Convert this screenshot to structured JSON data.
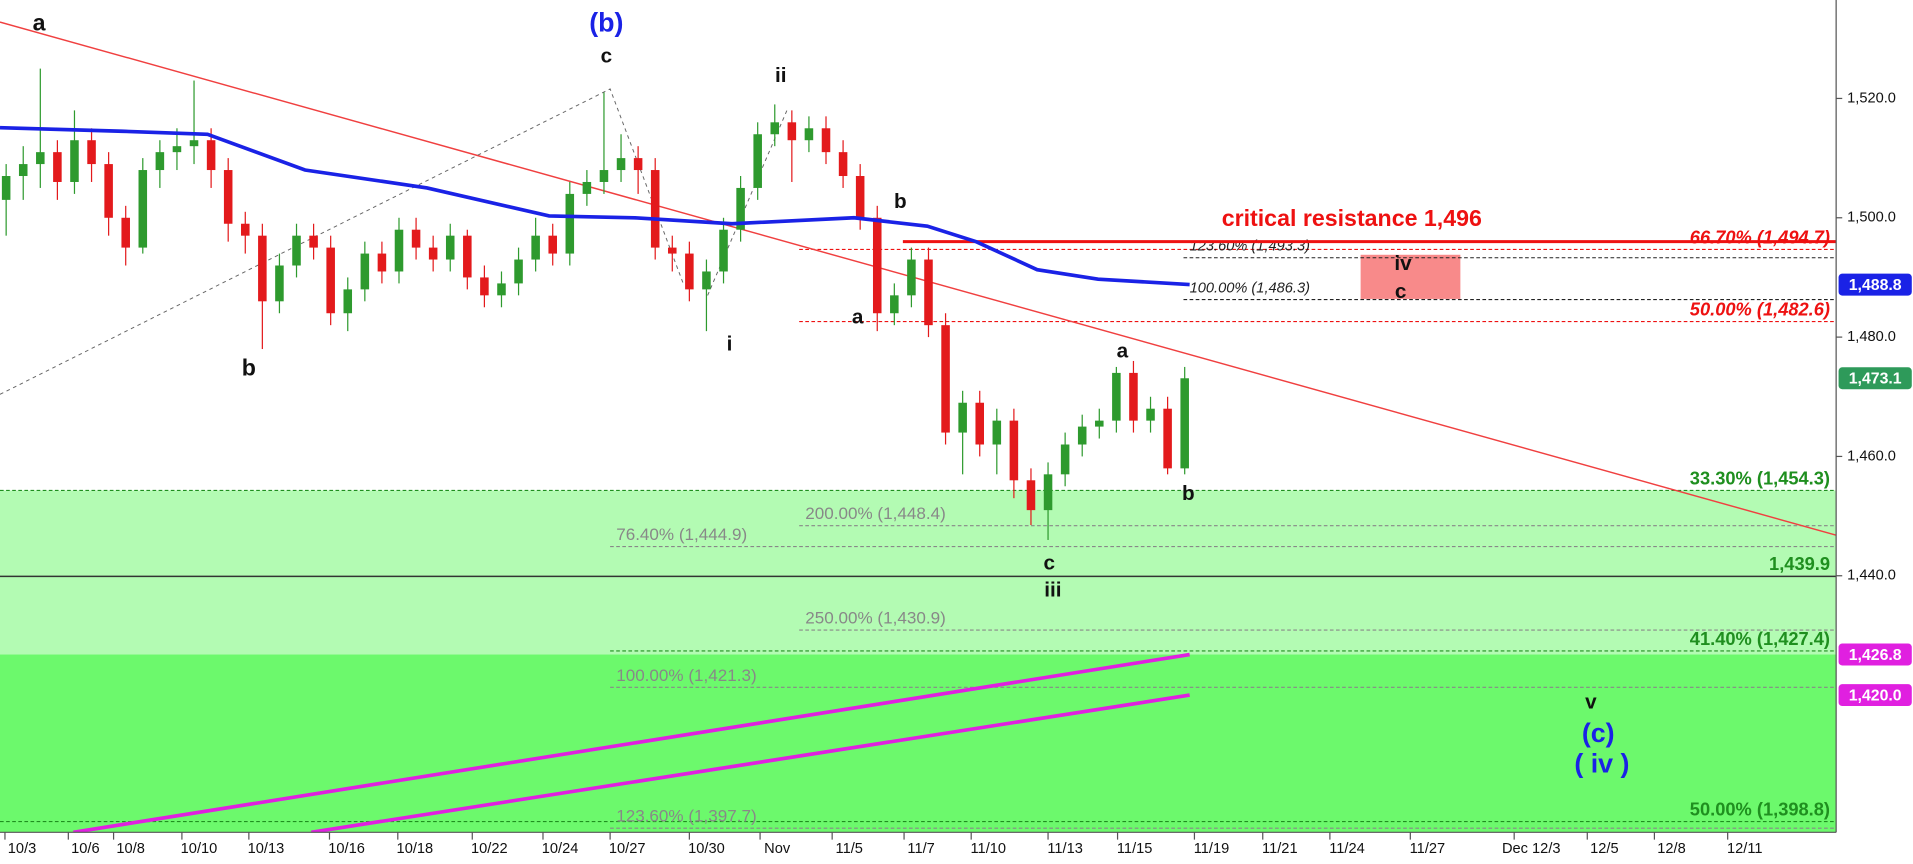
{
  "chart_data": {
    "type": "candlestick",
    "x": [
      0,
      1,
      2,
      3,
      4,
      5,
      6,
      7,
      8,
      9,
      10,
      11,
      12,
      13,
      14,
      15,
      16,
      17,
      18,
      19,
      20,
      21,
      22,
      23,
      24,
      25,
      26,
      27,
      28,
      29,
      30,
      31,
      32,
      33,
      34,
      35,
      36,
      37,
      38,
      39,
      40,
      41,
      42,
      43,
      44,
      45,
      46,
      47,
      48,
      49,
      50,
      51,
      52,
      53,
      54,
      55,
      56,
      57,
      58,
      59,
      60,
      61,
      62,
      63,
      64,
      65,
      66,
      67,
      68,
      69
    ],
    "open": [
      1503,
      1507,
      1509,
      1511,
      1506,
      1513,
      1509,
      1500,
      1495,
      1508,
      1511,
      1512,
      1513,
      1508,
      1499,
      1497,
      1486,
      1492,
      1497,
      1495,
      1484,
      1488,
      1494,
      1491,
      1498,
      1495,
      1493,
      1497,
      1490,
      1487,
      1489,
      1493,
      1497,
      1494,
      1504,
      1506,
      1508,
      1510,
      1508,
      1495,
      1494,
      1488,
      1491,
      1498,
      1505,
      1514,
      1516,
      1513,
      1515,
      1511,
      1507,
      1500,
      1484,
      1487,
      1493,
      1482,
      1464,
      1469,
      1462,
      1466,
      1456,
      1451,
      1457,
      1462,
      1465,
      1466,
      1474,
      1466,
      1468,
      1458
    ],
    "high": [
      1509,
      1512,
      1525,
      1513,
      1518,
      1515,
      1511,
      1502,
      1510,
      1513,
      1515,
      1523,
      1515,
      1510,
      1501,
      1499,
      1494,
      1499,
      1499,
      1497,
      1490,
      1496,
      1496,
      1500,
      1500,
      1497,
      1499,
      1498,
      1492,
      1491,
      1495,
      1500,
      1499,
      1506,
      1508,
      1521,
      1514,
      1512,
      1510,
      1497,
      1496,
      1493,
      1500,
      1507,
      1516,
      1519,
      1518,
      1517,
      1517,
      1513,
      1509,
      1502,
      1489,
      1495,
      1495,
      1484,
      1471,
      1471,
      1468,
      1468,
      1458,
      1459,
      1464,
      1467,
      1468,
      1475,
      1476,
      1470,
      1470,
      1475
    ],
    "low": [
      1497,
      1503,
      1505,
      1503,
      1504,
      1506,
      1497,
      1492,
      1494,
      1505,
      1508,
      1509,
      1505,
      1496,
      1494,
      1478,
      1484,
      1490,
      1493,
      1482,
      1481,
      1486,
      1489,
      1489,
      1493,
      1491,
      1491,
      1488,
      1485,
      1485,
      1487,
      1491,
      1492,
      1492,
      1502,
      1504,
      1506,
      1504,
      1493,
      1491,
      1486,
      1481,
      1489,
      1496,
      1503,
      1512,
      1506,
      1511,
      1509,
      1505,
      1498,
      1481,
      1482,
      1485,
      1480,
      1462,
      1457,
      1460,
      1457,
      1453,
      1448.5,
      1446,
      1455,
      1460,
      1463,
      1464,
      1464,
      1464,
      1457,
      1457
    ],
    "close": [
      1507,
      1509,
      1511,
      1506,
      1513,
      1509,
      1500,
      1495,
      1508,
      1511,
      1512,
      1513,
      1508,
      1499,
      1497,
      1486,
      1492,
      1497,
      1495,
      1484,
      1488,
      1494,
      1491,
      1498,
      1495,
      1493,
      1497,
      1490,
      1487,
      1489,
      1493,
      1497,
      1494,
      1504,
      1506,
      1508,
      1510,
      1508,
      1495,
      1494,
      1488,
      1491,
      1498,
      1505,
      1514,
      1516,
      1513,
      1515,
      1511,
      1507,
      1500,
      1484,
      1487,
      1493,
      1482,
      1464,
      1469,
      1462,
      1466,
      1456,
      1451,
      1457,
      1462,
      1465,
      1466,
      1474,
      1466,
      1468,
      1458,
      1473.1
    ],
    "up_color": "#2e9a2e",
    "down_color": "#e31a1c",
    "xlim": [
      -0.36,
      107.14
    ],
    "xticks": [
      {
        "value": 0.93,
        "label": "10/3"
      },
      {
        "value": 4.64,
        "label": "10/6"
      },
      {
        "value": 7.29,
        "label": "10/8"
      },
      {
        "value": 11.29,
        "label": "10/10"
      },
      {
        "value": 15.21,
        "label": "10/13"
      },
      {
        "value": 19.93,
        "label": "10/16"
      },
      {
        "value": 23.93,
        "label": "10/18"
      },
      {
        "value": 28.29,
        "label": "10/22"
      },
      {
        "value": 32.43,
        "label": "10/24"
      },
      {
        "value": 36.36,
        "label": "10/27"
      },
      {
        "value": 41,
        "label": "10/30"
      },
      {
        "value": 45.14,
        "label": "Nov"
      },
      {
        "value": 49.36,
        "label": "11/5"
      },
      {
        "value": 53.57,
        "label": "11/7"
      },
      {
        "value": 57.5,
        "label": "11/10"
      },
      {
        "value": 62,
        "label": "11/13"
      },
      {
        "value": 66.07,
        "label": "11/15"
      },
      {
        "value": 70.57,
        "label": "11/19"
      },
      {
        "value": 74.57,
        "label": "11/21"
      },
      {
        "value": 78.5,
        "label": "11/24"
      },
      {
        "value": 83.21,
        "label": "11/27"
      },
      {
        "value": 89.29,
        "label": "Dec 12/3"
      },
      {
        "value": 93.57,
        "label": "12/5"
      },
      {
        "value": 97.5,
        "label": "12/8"
      },
      {
        "value": 101.79,
        "label": "12/11"
      }
    ],
    "ylim": [
      1397,
      1536.5
    ],
    "yticks": [
      {
        "value": 1440,
        "label": "1,440.0"
      },
      {
        "value": 1460,
        "label": "1,460.0"
      },
      {
        "value": 1480,
        "label": "1,480.0"
      },
      {
        "value": 1500,
        "label": "1,500.0"
      },
      {
        "value": 1520,
        "label": "1,520.0"
      }
    ],
    "zones": [
      {
        "top": 1454.3,
        "bottom": 1426.8,
        "color": "#b3fbb3"
      },
      {
        "top": 1426.8,
        "bottom": 1397,
        "color": "#6cf96c"
      }
    ],
    "box": {
      "x": [
        79.3,
        85.14
      ],
      "y": [
        1486.4,
        1493.8
      ],
      "color": "#f88a8a"
    },
    "lines": [
      {
        "x": [
          -0.36,
          6.79,
          11.79,
          17.5,
          24.64,
          31.79,
          36.79,
          42.5,
          49.64,
          53.93,
          56.79,
          60.36,
          63.93,
          69.29
        ],
        "values": [
          1515.1,
          1514.5,
          1514,
          1508,
          1505,
          1500.3,
          1500,
          1499,
          1500,
          1498.6,
          1496,
          1491.3,
          1489.7,
          1488.8
        ],
        "color": "#1a22e6",
        "width": 3,
        "dash": false
      },
      {
        "x": [
          -0.36,
          107.14
        ],
        "values": [
          1532.8,
          1446.8
        ],
        "color": "#f04040",
        "width": 1.2,
        "dash": false
      },
      {
        "x": [
          -0.36,
          35.36,
          39.64
        ],
        "values": [
          1470.4,
          1521.6,
          1489
        ],
        "color": "#666666",
        "width": 0.8,
        "dash": true
      },
      {
        "x": [
          41.07,
          45.71
        ],
        "values": [
          1487,
          1518
        ],
        "color": "#666666",
        "width": 0.8,
        "dash": true
      },
      {
        "x": [
          3.93,
          69.29
        ],
        "values": [
          1397,
          1426.8
        ],
        "color": "#e020e0",
        "width": 3,
        "dash": false
      },
      {
        "x": [
          17.86,
          69.29
        ],
        "values": [
          1397,
          1420.0
        ],
        "color": "#e020e0",
        "width": 3,
        "dash": false
      }
    ],
    "resistance": {
      "label": "critical resistance 1,496",
      "value": 1496,
      "from": 52.5,
      "color": "#ee1111"
    },
    "levels": [
      {
        "label": "66.70% (1,494.7)",
        "value": 1494.7,
        "from": 46.43,
        "color": "#ee1111",
        "dash": true,
        "label_side": "right"
      },
      {
        "label": "123.60% (1,493.3)",
        "value": 1493.3,
        "from": 68.93,
        "color": "#222222",
        "dash": true,
        "label_side": "left"
      },
      {
        "label": "100.00% (1,486.3)",
        "value": 1486.3,
        "from": 68.93,
        "color": "#222222",
        "dash": true,
        "label_side": "left"
      },
      {
        "label": "50.00% (1,482.6)",
        "value": 1482.6,
        "from": 46.43,
        "color": "#ee1111",
        "dash": true,
        "label_side": "right"
      },
      {
        "label": "33.30% (1,454.3)",
        "value": 1454.3,
        "from": -0.36,
        "color": "#1f8f1f",
        "dash": true,
        "label_side": "right"
      },
      {
        "label": "200.00% (1,448.4)",
        "value": 1448.4,
        "from": 46.43,
        "color": "#888888",
        "dash": true,
        "label_side": "left"
      },
      {
        "label": "76.40% (1,444.9)",
        "value": 1444.9,
        "from": 35.36,
        "color": "#888888",
        "dash": true,
        "label_side": "left"
      },
      {
        "label": "1,439.9",
        "value": 1439.9,
        "from": -0.36,
        "color": "#1f8f1f",
        "dash": false,
        "label_side": "right"
      },
      {
        "label": "250.00% (1,430.9)",
        "value": 1430.9,
        "from": 46.43,
        "color": "#888888",
        "dash": true,
        "label_side": "left"
      },
      {
        "label": "41.40% (1,427.4)",
        "value": 1427.4,
        "from": 35.36,
        "color": "#1f8f1f",
        "dash": true,
        "label_side": "right"
      },
      {
        "label": "100.00% (1,421.3)",
        "value": 1421.3,
        "from": 35.36,
        "color": "#888888",
        "dash": true,
        "label_side": "left"
      },
      {
        "label": "50.00% (1,398.8)",
        "value": 1398.8,
        "from": -0.36,
        "color": "#1f8f1f",
        "dash": true,
        "label_side": "right"
      },
      {
        "label": "123.60% (1,397.7)",
        "value": 1397.7,
        "from": 35.36,
        "color": "#888888",
        "dash": true,
        "label_side": "left"
      }
    ],
    "price_tags": [
      {
        "label": "1,488.8",
        "value": 1488.8,
        "color": "#1a22e6"
      },
      {
        "label": "1,473.1",
        "value": 1473.1,
        "color": "#2e9a5a"
      },
      {
        "label": "1,426.8",
        "value": 1426.8,
        "color": "#e020e0"
      },
      {
        "label": "1,420.0",
        "value": 1420.0,
        "color": "#e020e0"
      }
    ],
    "annotations": [
      {
        "text": "a",
        "color": "#111111"
      },
      {
        "text": "(b)",
        "color": "#1a22e6"
      },
      {
        "text": "c",
        "color": "#111111"
      },
      {
        "text": "ii",
        "color": "#111111"
      },
      {
        "text": "b",
        "color": "#111111"
      },
      {
        "text": "i",
        "color": "#111111"
      },
      {
        "text": "b",
        "color": "#111111"
      },
      {
        "text": "a",
        "color": "#111111"
      },
      {
        "text": "a",
        "color": "#111111"
      },
      {
        "text": "b",
        "color": "#111111"
      },
      {
        "text": "c",
        "color": "#111111"
      },
      {
        "text": "iii",
        "color": "#111111"
      },
      {
        "text": "iv",
        "color": "#111111"
      },
      {
        "text": "c",
        "color": "#111111"
      },
      {
        "text": "v",
        "color": "#111111"
      },
      {
        "text": "(c)",
        "color": "#1a22e6"
      },
      {
        "text": "( iv )",
        "color": "#1a22e6"
      }
    ]
  }
}
